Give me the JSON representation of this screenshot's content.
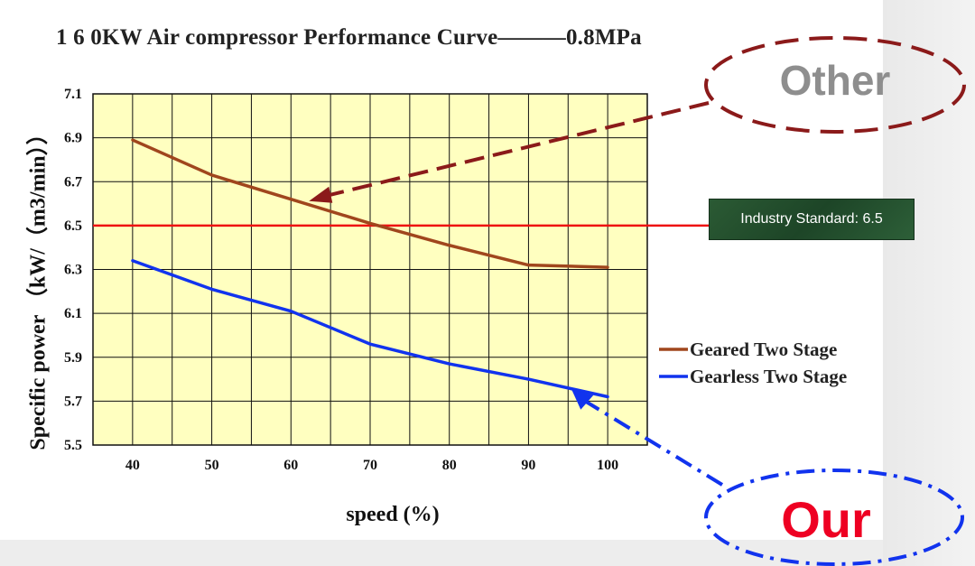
{
  "title": "1 6 0KW Air compressor Performance Curve———0.8MPa",
  "chart_data": {
    "type": "line",
    "title": "1 6 0KW Air compressor Performance Curve———0.8MPa",
    "xlabel": "speed (%)",
    "ylabel": "Specific power （kW/（m3/min））",
    "x": [
      40,
      50,
      60,
      70,
      80,
      90,
      100
    ],
    "xlim": [
      35,
      105
    ],
    "ylim": [
      5.5,
      7.1
    ],
    "yticks": [
      5.5,
      5.7,
      5.9,
      6.1,
      6.3,
      6.5,
      6.7,
      6.9,
      7.1
    ],
    "xticks": [
      40,
      50,
      60,
      70,
      80,
      90,
      100
    ],
    "grid": true,
    "legend_position": "right",
    "series": [
      {
        "name": "Geared Two Stage",
        "color": "#a0461d",
        "values": [
          6.89,
          6.73,
          6.62,
          6.51,
          6.41,
          6.32,
          6.31
        ]
      },
      {
        "name": "Gearless Two Stage",
        "color": "#1133ee",
        "values": [
          6.34,
          6.21,
          6.11,
          5.96,
          5.87,
          5.8,
          5.72
        ]
      }
    ],
    "reference_line": {
      "value": 6.5,
      "color": "#ee1111",
      "label": "Industry Standard: 6.5"
    }
  },
  "annotations": {
    "other": {
      "text": "Other",
      "color": "#8b1a1a"
    },
    "our": {
      "text": "Our",
      "color": "#1133ee"
    }
  },
  "colors": {
    "plot_background": "#ffffc0",
    "grid": "#111111"
  }
}
